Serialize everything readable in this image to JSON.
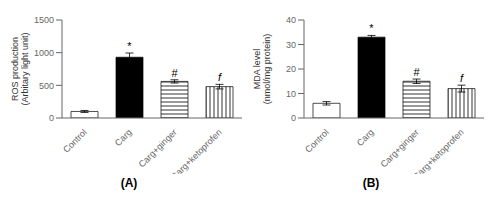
{
  "chart_data": [
    {
      "type": "bar",
      "title": "(A)",
      "ylabel": "ROS production\n(Arbitary light unit)",
      "categories": [
        "Control",
        "Carg",
        "Carg+ginger",
        "Carg+ketoprofen"
      ],
      "values": [
        100,
        930,
        560,
        480
      ],
      "errors": [
        15,
        65,
        25,
        35
      ],
      "ylim": [
        0,
        1500
      ],
      "yticks": [
        0,
        500,
        1000,
        1500
      ],
      "colors": [
        "white",
        "black",
        "white",
        "white"
      ],
      "annotations": [
        {
          "x": "Carg",
          "text": "*"
        },
        {
          "x": "Carg+ginger",
          "text": "#"
        },
        {
          "x": "Carg+ketoprofen",
          "text": "f"
        }
      ]
    },
    {
      "type": "bar",
      "title": "(B)",
      "ylabel": "MDA level\n(nmol/mg protein)",
      "categories": [
        "Control",
        "Carg",
        "Carg+ginger",
        "Carg+ketoprofen"
      ],
      "values": [
        6,
        33,
        15,
        12
      ],
      "errors": [
        0.7,
        0.7,
        0.9,
        1.4
      ],
      "ylim": [
        0,
        40
      ],
      "yticks": [
        0,
        10,
        20,
        30,
        40
      ],
      "colors": [
        "white",
        "black",
        "white",
        "white"
      ],
      "annotations": [
        {
          "x": "Carg",
          "text": "*"
        },
        {
          "x": "Carg+ginger",
          "text": "#"
        },
        {
          "x": "Carg+ketoprofen",
          "text": "f"
        }
      ]
    }
  ]
}
